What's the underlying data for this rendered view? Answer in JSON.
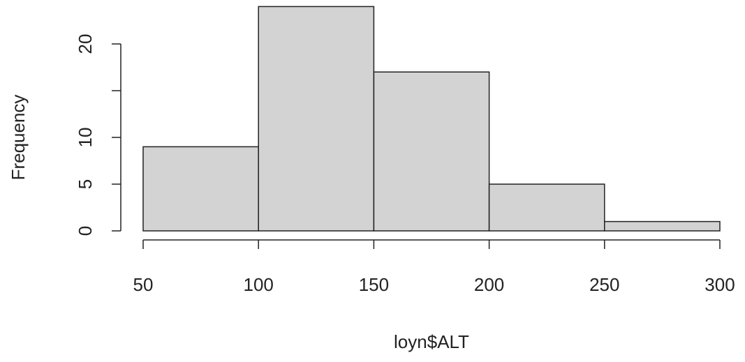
{
  "chart_data": {
    "type": "histogram",
    "xlabel": "loyn$ALT",
    "ylabel": "Frequency",
    "bins": [
      50,
      100,
      150,
      200,
      250,
      300
    ],
    "values": [
      9,
      24,
      17,
      5,
      1
    ],
    "color": "#d3d3d3",
    "xlim": [
      50,
      300
    ],
    "xticks": [
      50,
      100,
      150,
      200,
      250,
      300
    ],
    "ylim": [
      0,
      24
    ],
    "yticks": [
      0,
      5,
      10,
      {
        "value": 15,
        "label": null
      },
      20
    ]
  }
}
